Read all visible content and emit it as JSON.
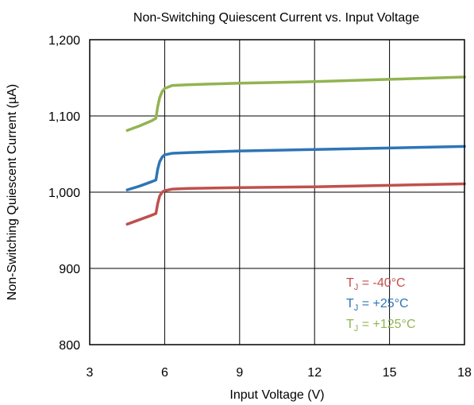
{
  "chart_data": {
    "type": "line",
    "title": "Non-Switching Quiescent Current vs. Input Voltage",
    "xlabel": "Input Voltage (V)",
    "ylabel": "Non-Switching Quiescent Current (µA)",
    "xlim": [
      3,
      18
    ],
    "ylim": [
      800,
      1200
    ],
    "xticks": [
      3,
      6,
      9,
      12,
      15,
      18
    ],
    "xtick_labels": [
      "3",
      "6",
      "9",
      "12",
      "15",
      "18"
    ],
    "yticks": [
      800,
      900,
      1000,
      1100,
      1200
    ],
    "ytick_labels": [
      "800",
      "900",
      "1,000",
      "1,100",
      "1,200"
    ],
    "grid": true,
    "legend_position": "bottom-right",
    "series": [
      {
        "legend_main": "T",
        "legend_sub": "J",
        "legend_rest": " = -40°C",
        "color": "#C0504D",
        "points": [
          [
            4.5,
            958
          ],
          [
            5.0,
            964
          ],
          [
            5.5,
            970
          ],
          [
            5.65,
            972
          ],
          [
            5.72,
            985
          ],
          [
            5.8,
            995
          ],
          [
            5.9,
            1000
          ],
          [
            6.0,
            1002
          ],
          [
            6.3,
            1004
          ],
          [
            7.0,
            1005
          ],
          [
            9.0,
            1006
          ],
          [
            12.0,
            1007
          ],
          [
            15.0,
            1009
          ],
          [
            18.0,
            1011
          ]
        ]
      },
      {
        "legend_main": "T",
        "legend_sub": "J",
        "legend_rest": " = +25°C",
        "color": "#2E75B6",
        "points": [
          [
            4.5,
            1003
          ],
          [
            5.0,
            1008
          ],
          [
            5.5,
            1014
          ],
          [
            5.65,
            1016
          ],
          [
            5.72,
            1030
          ],
          [
            5.8,
            1040
          ],
          [
            5.9,
            1046
          ],
          [
            6.0,
            1049
          ],
          [
            6.3,
            1051
          ],
          [
            7.0,
            1052
          ],
          [
            9.0,
            1054
          ],
          [
            12.0,
            1056
          ],
          [
            15.0,
            1058
          ],
          [
            18.0,
            1060
          ]
        ]
      },
      {
        "legend_main": "T",
        "legend_sub": "J",
        "legend_rest": " = +125°C",
        "color": "#92B451",
        "points": [
          [
            4.5,
            1081
          ],
          [
            5.0,
            1087
          ],
          [
            5.5,
            1094
          ],
          [
            5.65,
            1097
          ],
          [
            5.72,
            1112
          ],
          [
            5.8,
            1124
          ],
          [
            5.9,
            1132
          ],
          [
            6.0,
            1136
          ],
          [
            6.3,
            1140
          ],
          [
            7.0,
            1141
          ],
          [
            9.0,
            1143
          ],
          [
            12.0,
            1145
          ],
          [
            15.0,
            1148
          ],
          [
            18.0,
            1151
          ]
        ]
      }
    ]
  }
}
